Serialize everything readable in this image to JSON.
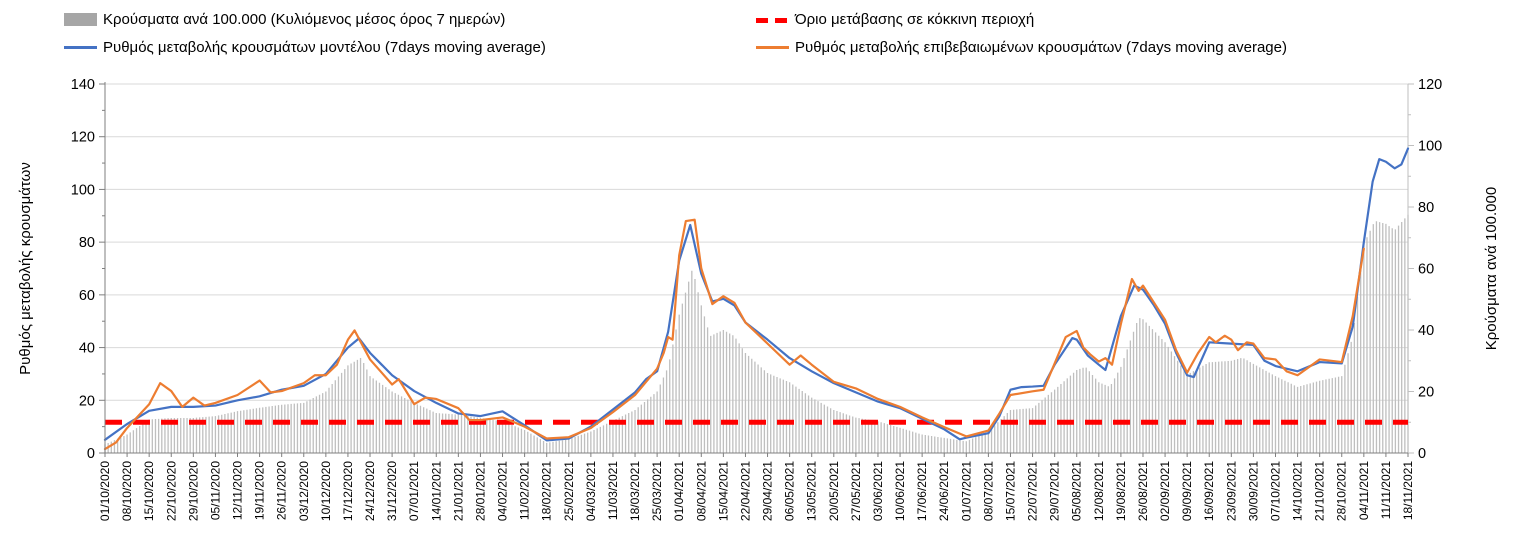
{
  "legend": {
    "items": [
      {
        "id": "bars",
        "label": "Κρούσματα ανά 100.000 (Κυλιόμενος μέσος όρος 7 ημερών)",
        "swatch": "gray-bar-swatch",
        "color": "#a6a6a6",
        "type": "bar"
      },
      {
        "id": "threshold",
        "label": "Όριο μετάβασης σε κόκκινη περιοχή",
        "swatch": "red-dash-swatch",
        "color": "#ff0000",
        "type": "dashed-line"
      },
      {
        "id": "model",
        "label": "Ρυθμός μεταβολής κρουσμάτων μοντέλου (7days moving average)",
        "swatch": "blue-line-swatch",
        "color": "#4472c4",
        "type": "line"
      },
      {
        "id": "confirmed",
        "label": "Ρυθμός μεταβολής επιβεβαιωμένων κρουσμάτων (7days moving average)",
        "swatch": "orange-line-swatch",
        "color": "#ed7d31",
        "type": "line"
      }
    ]
  },
  "chart_data": {
    "type": "combo",
    "grid": true,
    "legend_position": "top",
    "left_axis": {
      "title": "Ρυθμός μεταβολής κρουσμάτων",
      "min": 0,
      "max": 140,
      "step": 20,
      "minor_step": 10,
      "ticks": [
        0,
        20,
        40,
        60,
        80,
        100,
        120,
        140
      ]
    },
    "right_axis": {
      "title": "Κρούσματα ανά 100.000",
      "min": 0,
      "max": 120,
      "step": 20,
      "minor_step": 10,
      "ticks": [
        0,
        20,
        40,
        60,
        80,
        100,
        120
      ]
    },
    "x_axis": {
      "labels": [
        "01/10/2020",
        "08/10/2020",
        "15/10/2020",
        "22/10/2020",
        "29/10/2020",
        "05/11/2020",
        "12/11/2020",
        "19/11/2020",
        "26/11/2020",
        "03/12/2020",
        "10/12/2020",
        "17/12/2020",
        "24/12/2020",
        "31/12/2020",
        "07/01/2021",
        "14/01/2021",
        "21/01/2021",
        "28/01/2021",
        "04/02/2021",
        "11/02/2021",
        "18/02/2021",
        "25/02/2021",
        "04/03/2021",
        "11/03/2021",
        "18/03/2021",
        "25/03/2021",
        "01/04/2021",
        "08/04/2021",
        "15/04/2021",
        "22/04/2021",
        "29/04/2021",
        "06/05/2021",
        "13/05/2021",
        "20/05/2021",
        "27/05/2021",
        "03/06/2021",
        "10/06/2021",
        "17/06/2021",
        "24/06/2021",
        "01/07/2021",
        "08/07/2021",
        "15/07/2021",
        "22/07/2021",
        "29/07/2021",
        "05/08/2021",
        "12/08/2021",
        "19/08/2021",
        "26/08/2021",
        "02/09/2021",
        "09/09/2021",
        "16/09/2021",
        "23/09/2021",
        "30/09/2021",
        "07/10/2021",
        "14/10/2021",
        "21/10/2021",
        "28/10/2021",
        "04/11/2021",
        "11/11/2021",
        "18/11/2021"
      ]
    },
    "series": [
      {
        "name": "Κρούσματα ανά 100.000 (Κυλιόμενος μέσος όρος 7 ημερών)",
        "type": "bar",
        "axis": "right",
        "color": "#bfbfbf",
        "points": [
          [
            0,
            2.8
          ],
          [
            1,
            6
          ],
          [
            2,
            10.9
          ],
          [
            3,
            11.4
          ],
          [
            4,
            11.4
          ],
          [
            5,
            12
          ],
          [
            6,
            13.6
          ],
          [
            7,
            14.7
          ],
          [
            8,
            15.7
          ],
          [
            9,
            16.3
          ],
          [
            10,
            20
          ],
          [
            11,
            28.5
          ],
          [
            11.6,
            31
          ],
          [
            12,
            25
          ],
          [
            13,
            20
          ],
          [
            14,
            16.3
          ],
          [
            15,
            13
          ],
          [
            16,
            12.5
          ],
          [
            17,
            11.4
          ],
          [
            18,
            10.3
          ],
          [
            19,
            7.5
          ],
          [
            20,
            3.3
          ],
          [
            21,
            4.5
          ],
          [
            22,
            7
          ],
          [
            23,
            10.5
          ],
          [
            24,
            14
          ],
          [
            25,
            20
          ],
          [
            25.5,
            28
          ],
          [
            26,
            45
          ],
          [
            26.6,
            60
          ],
          [
            27,
            48
          ],
          [
            27.4,
            38
          ],
          [
            28,
            40
          ],
          [
            28.5,
            38
          ],
          [
            29,
            32.5
          ],
          [
            30,
            26
          ],
          [
            31,
            23
          ],
          [
            32,
            18
          ],
          [
            33,
            14
          ],
          [
            34,
            11.5
          ],
          [
            35,
            10.3
          ],
          [
            36,
            8.2
          ],
          [
            37,
            6
          ],
          [
            38,
            4.9
          ],
          [
            39,
            3.8
          ],
          [
            40,
            7
          ],
          [
            41,
            14
          ],
          [
            42,
            14.6
          ],
          [
            43,
            20.6
          ],
          [
            44,
            27
          ],
          [
            44.4,
            28
          ],
          [
            45,
            23
          ],
          [
            45.5,
            21.5
          ],
          [
            46,
            28
          ],
          [
            46.8,
            44
          ],
          [
            47,
            43.5
          ],
          [
            48,
            36
          ],
          [
            49,
            25.5
          ],
          [
            50,
            29.5
          ],
          [
            51,
            30
          ],
          [
            51.5,
            31
          ],
          [
            52,
            29
          ],
          [
            53,
            25
          ],
          [
            54,
            21.5
          ],
          [
            55,
            23.5
          ],
          [
            56,
            25
          ],
          [
            56.5,
            38
          ],
          [
            57,
            68
          ],
          [
            57.5,
            75.5
          ],
          [
            58,
            74.5
          ],
          [
            58.4,
            72.5
          ],
          [
            59,
            77.5
          ]
        ]
      },
      {
        "name": "Ρυθμός μεταβολής κρουσμάτων μοντέλου (7days moving average)",
        "type": "line",
        "axis": "left",
        "color": "#4472c4",
        "points": [
          [
            0,
            5
          ],
          [
            1,
            11
          ],
          [
            2,
            16
          ],
          [
            3,
            17.5
          ],
          [
            4,
            17.5
          ],
          [
            5,
            18
          ],
          [
            6,
            20
          ],
          [
            7,
            21.5
          ],
          [
            8,
            24
          ],
          [
            9,
            25.5
          ],
          [
            10,
            30
          ],
          [
            11,
            40
          ],
          [
            11.5,
            43.5
          ],
          [
            12,
            38
          ],
          [
            13,
            29.5
          ],
          [
            14,
            23.5
          ],
          [
            15,
            19
          ],
          [
            16,
            15
          ],
          [
            17,
            14
          ],
          [
            18,
            15.8
          ],
          [
            19,
            10.5
          ],
          [
            20,
            4.8
          ],
          [
            21,
            5.5
          ],
          [
            22,
            10
          ],
          [
            23,
            16.5
          ],
          [
            24,
            23
          ],
          [
            24.5,
            28
          ],
          [
            25,
            31
          ],
          [
            25.5,
            46
          ],
          [
            26,
            73
          ],
          [
            26.5,
            86.5
          ],
          [
            27,
            68
          ],
          [
            27.5,
            57.5
          ],
          [
            28,
            58.5
          ],
          [
            28.5,
            56
          ],
          [
            29,
            49.5
          ],
          [
            30,
            43
          ],
          [
            31,
            36
          ],
          [
            32,
            31
          ],
          [
            33,
            26.5
          ],
          [
            34,
            23
          ],
          [
            35,
            19.5
          ],
          [
            36,
            17
          ],
          [
            37,
            13
          ],
          [
            38,
            9
          ],
          [
            38.7,
            5.2
          ],
          [
            39,
            5.8
          ],
          [
            40,
            7.5
          ],
          [
            40.5,
            14
          ],
          [
            41,
            24
          ],
          [
            41.5,
            25
          ],
          [
            42,
            25.2
          ],
          [
            42.5,
            25.5
          ],
          [
            43,
            33.5
          ],
          [
            43.8,
            43.6
          ],
          [
            44,
            43
          ],
          [
            44.5,
            37
          ],
          [
            45,
            33.5
          ],
          [
            45.3,
            31.5
          ],
          [
            46,
            52
          ],
          [
            46.6,
            63.5
          ],
          [
            47,
            62
          ],
          [
            47.5,
            56
          ],
          [
            48,
            49
          ],
          [
            48.5,
            38
          ],
          [
            49,
            29.5
          ],
          [
            49.3,
            28.8
          ],
          [
            50,
            42
          ],
          [
            51,
            41.5
          ],
          [
            52,
            41
          ],
          [
            52.5,
            35
          ],
          [
            53,
            33
          ],
          [
            54,
            31
          ],
          [
            55,
            34.5
          ],
          [
            56,
            34
          ],
          [
            56.5,
            48
          ],
          [
            57,
            80
          ],
          [
            57.4,
            103
          ],
          [
            57.7,
            111.5
          ],
          [
            58,
            110.5
          ],
          [
            58.4,
            108
          ],
          [
            58.7,
            109.5
          ],
          [
            59,
            115.5
          ]
        ]
      },
      {
        "name": "Ρυθμός μεταβολής επιβεβαιωμένων κρουσμάτων (7days moving average)",
        "type": "line",
        "axis": "left",
        "color": "#ed7d31",
        "points": [
          [
            0,
            1.5
          ],
          [
            0.5,
            4
          ],
          [
            1,
            9.5
          ],
          [
            1.5,
            14
          ],
          [
            2,
            18.5
          ],
          [
            2.5,
            26.5
          ],
          [
            3,
            23.5
          ],
          [
            3.5,
            17.5
          ],
          [
            4,
            21
          ],
          [
            4.5,
            18
          ],
          [
            5,
            19
          ],
          [
            6,
            22
          ],
          [
            7,
            27.5
          ],
          [
            7.5,
            23
          ],
          [
            8,
            23.5
          ],
          [
            9,
            26.5
          ],
          [
            9.5,
            29.5
          ],
          [
            10,
            29.5
          ],
          [
            10.5,
            33.5
          ],
          [
            11,
            43
          ],
          [
            11.3,
            46.5
          ],
          [
            12,
            35.5
          ],
          [
            13,
            26
          ],
          [
            13.3,
            28
          ],
          [
            14,
            18.5
          ],
          [
            14.5,
            21
          ],
          [
            15,
            20.5
          ],
          [
            16,
            17
          ],
          [
            16.5,
            12.5
          ],
          [
            17,
            12.5
          ],
          [
            18,
            13.5
          ],
          [
            19,
            10
          ],
          [
            20,
            5.5
          ],
          [
            21,
            6
          ],
          [
            22,
            9.5
          ],
          [
            23,
            15.5
          ],
          [
            24,
            22
          ],
          [
            25,
            32
          ],
          [
            25.3,
            38
          ],
          [
            25.5,
            44
          ],
          [
            25.7,
            43
          ],
          [
            26,
            75
          ],
          [
            26.3,
            88
          ],
          [
            26.7,
            88.5
          ],
          [
            27,
            70
          ],
          [
            27.5,
            56.5
          ],
          [
            28,
            59.5
          ],
          [
            28.5,
            57
          ],
          [
            29,
            49.5
          ],
          [
            30,
            41.5
          ],
          [
            31,
            33.5
          ],
          [
            31.5,
            37
          ],
          [
            32,
            33.5
          ],
          [
            33,
            27
          ],
          [
            34,
            24.5
          ],
          [
            35,
            20.5
          ],
          [
            36,
            17.5
          ],
          [
            37,
            13.5
          ],
          [
            38,
            9.8
          ],
          [
            39,
            6.3
          ],
          [
            40,
            8.5
          ],
          [
            40.5,
            15
          ],
          [
            41,
            22
          ],
          [
            42,
            23.4
          ],
          [
            42.5,
            24
          ],
          [
            43,
            34
          ],
          [
            43.5,
            44
          ],
          [
            44,
            46.3
          ],
          [
            44.3,
            40
          ],
          [
            44.6,
            37.5
          ],
          [
            45,
            34.7
          ],
          [
            45.3,
            36
          ],
          [
            45.6,
            33.5
          ],
          [
            46,
            49
          ],
          [
            46.5,
            66
          ],
          [
            46.8,
            61.5
          ],
          [
            47,
            63.5
          ],
          [
            47.5,
            57
          ],
          [
            48,
            50.5
          ],
          [
            48.5,
            39
          ],
          [
            49,
            30.5
          ],
          [
            49.5,
            38
          ],
          [
            50,
            44
          ],
          [
            50.3,
            42
          ],
          [
            50.7,
            44.5
          ],
          [
            51,
            43
          ],
          [
            51.3,
            39
          ],
          [
            51.7,
            42
          ],
          [
            52,
            41.5
          ],
          [
            52.5,
            36
          ],
          [
            53,
            35.5
          ],
          [
            53.5,
            31
          ],
          [
            54,
            29.5
          ],
          [
            55,
            35.5
          ],
          [
            56,
            34.5
          ],
          [
            56.5,
            52
          ],
          [
            57,
            77.5
          ]
        ]
      },
      {
        "name": "Όριο μετάβασης σε κόκκινη περιοχή",
        "type": "threshold",
        "axis": "right",
        "color": "#ff0000",
        "value": 10
      }
    ]
  },
  "colors": {
    "grid": "#d9d9d9",
    "axis": "#7f7f7f",
    "right_axis_line": "#bfbfbf",
    "bars": "#bfbfbf",
    "model": "#4472c4",
    "confirmed": "#ed7d31",
    "threshold": "#ff0000"
  }
}
